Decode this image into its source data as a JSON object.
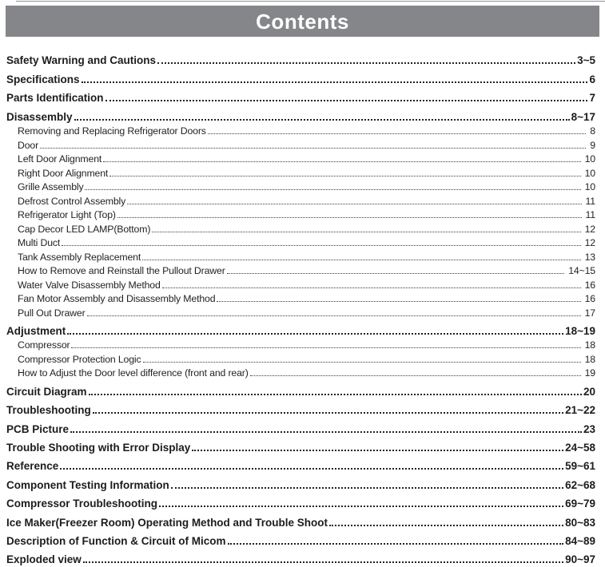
{
  "page": {
    "title": "Contents"
  },
  "colors": {
    "header_bg": "#85868a",
    "header_text": "#ffffff",
    "top_rule": "#8f9093",
    "text": "#1c1c1e",
    "leader_dots": "#222222"
  },
  "toc": [
    {
      "level": 0,
      "label": "Safety Warning and Cautions",
      "page": "3~5"
    },
    {
      "level": 0,
      "label": "Specifications",
      "page": "6"
    },
    {
      "level": 0,
      "label": "Parts Identification",
      "page": "7"
    },
    {
      "level": 0,
      "label": "Disassembly",
      "page": "8~17"
    },
    {
      "level": 1,
      "label": "Removing and Replacing Refrigerator Doors",
      "page": "8"
    },
    {
      "level": 1,
      "label": "Door",
      "page": "9"
    },
    {
      "level": 1,
      "label": "Left Door Alignment",
      "page": "10"
    },
    {
      "level": 1,
      "label": "Right Door Alignment",
      "page": "10"
    },
    {
      "level": 1,
      "label": "Grille Assembly",
      "page": "10"
    },
    {
      "level": 1,
      "label": "Defrost Control Assembly",
      "page": "11"
    },
    {
      "level": 1,
      "label": "Refrigerator Light (Top)",
      "page": "11"
    },
    {
      "level": 1,
      "label": "Cap Decor LED LAMP(Bottom)",
      "page": "12"
    },
    {
      "level": 1,
      "label": "Multi Duct",
      "page": "12"
    },
    {
      "level": 1,
      "label": "Tank Assembly Replacement",
      "page": "13"
    },
    {
      "level": 1,
      "label": "How to Remove and Reinstall the Pullout Drawer",
      "page": "14~15"
    },
    {
      "level": 1,
      "label": "Water Valve Disassembly Method",
      "page": "16"
    },
    {
      "level": 1,
      "label": "Fan Motor Assembly and Disassembly Method",
      "page": "16"
    },
    {
      "level": 1,
      "label": "Pull Out Drawer",
      "page": "17"
    },
    {
      "level": 0,
      "label": "Adjustment",
      "page": "18~19"
    },
    {
      "level": 1,
      "label": "Compressor",
      "page": "18"
    },
    {
      "level": 1,
      "label": "Compressor Protection Logic",
      "page": "18"
    },
    {
      "level": 1,
      "label": "How to Adjust the Door level difference (front and rear)",
      "page": "19"
    },
    {
      "level": 0,
      "label": "Circuit Diagram",
      "page": "20"
    },
    {
      "level": 0,
      "label": "Troubleshooting",
      "page": "21~22"
    },
    {
      "level": 0,
      "label": "PCB Picture",
      "page": "23"
    },
    {
      "level": 0,
      "label": "Trouble Shooting with Error Display",
      "page": "24~58"
    },
    {
      "level": 0,
      "label": "Reference",
      "page": "59~61"
    },
    {
      "level": 0,
      "label": "Component Testing Information",
      "page": "62~68"
    },
    {
      "level": 0,
      "label": "Compressor Troubleshooting",
      "page": "69~79"
    },
    {
      "level": 0,
      "label": "Ice Maker(Freezer Room) Operating Method and Trouble Shoot",
      "page": "80~83"
    },
    {
      "level": 0,
      "label": "Description of Function & Circuit of Micom",
      "page": "84~89"
    },
    {
      "level": 0,
      "label": "Exploded view",
      "page": "90~97"
    }
  ]
}
